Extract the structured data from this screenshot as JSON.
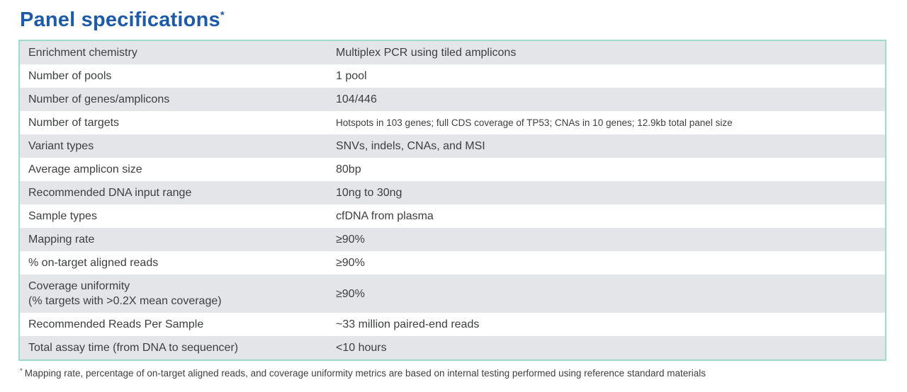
{
  "page": {
    "title": "Panel specifications",
    "title_marker": "*",
    "accent_color": "#1d5aa8",
    "table_border_color": "#9edbc9",
    "row_stripe_color": "#e4e5e8"
  },
  "table": {
    "rows": [
      {
        "label": "Enrichment chemistry",
        "value": "Multiplex PCR using tiled amplicons"
      },
      {
        "label": "Number of pools",
        "value": "1 pool"
      },
      {
        "label": "Number of genes/amplicons",
        "value": "104/446"
      },
      {
        "label": "Number of targets",
        "value": "Hotspots in 103 genes; full CDS coverage of TP53; CNAs in 10 genes; 12.9kb total panel size"
      },
      {
        "label": "Variant types",
        "value": "SNVs, indels, CNAs, and MSI"
      },
      {
        "label": "Average amplicon size",
        "value": "80bp"
      },
      {
        "label": "Recommended DNA input range",
        "value": "10ng to 30ng"
      },
      {
        "label": "Sample types",
        "value": "cfDNA from plasma"
      },
      {
        "label": "Mapping rate",
        "value": "≥90%"
      },
      {
        "label": "% on-target aligned reads",
        "value": "≥90%"
      },
      {
        "label": "Coverage uniformity",
        "sublabel": "(% targets with >0.2X mean coverage)",
        "value": "≥90%"
      },
      {
        "label": "Recommended Reads Per Sample",
        "value": "~33 million paired-end reads"
      },
      {
        "label": "Total assay time (from DNA to sequencer)",
        "value": "<10 hours"
      }
    ]
  },
  "footnote": {
    "marker": "*",
    "text": "Mapping rate, percentage of on-target aligned reads, and coverage uniformity metrics are based on internal testing performed using reference standard materials"
  }
}
